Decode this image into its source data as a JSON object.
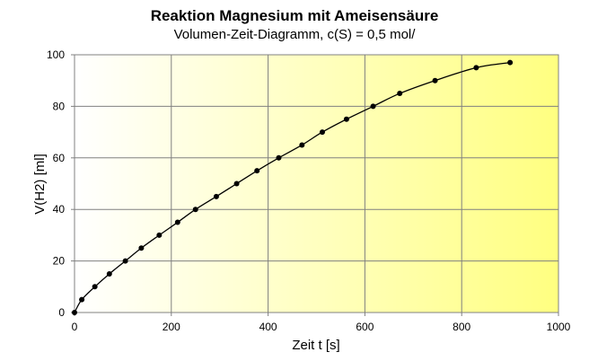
{
  "chart_data": {
    "type": "scatter",
    "title": "Reaktion Magnesium mit Ameisensäure",
    "subtitle": "Volumen-Zeit-Diagramm, c(S) = 0,5 mol/",
    "xlabel": "Zeit t [s]",
    "ylabel": "V(H2) [ml]",
    "xlim": [
      0,
      1000
    ],
    "ylim": [
      0,
      100
    ],
    "xticks": [
      0,
      200,
      400,
      600,
      800,
      1000
    ],
    "yticks": [
      0,
      20,
      40,
      60,
      80,
      100
    ],
    "grid": true,
    "legend": "none",
    "background_gradient": [
      "#ffffff",
      "#ffff80"
    ],
    "line_color": "#000000",
    "marker_color": "#000000",
    "series": [
      {
        "x": [
          0,
          15,
          42,
          72,
          105,
          138,
          175,
          213,
          250,
          293,
          335,
          377,
          422,
          470,
          512,
          562,
          617,
          672,
          745,
          830,
          900
        ],
        "y": [
          0,
          5,
          10,
          15,
          20,
          25,
          30,
          35,
          40,
          45,
          50,
          55,
          60,
          65,
          70,
          75,
          80,
          85,
          90,
          95,
          97
        ]
      }
    ]
  }
}
